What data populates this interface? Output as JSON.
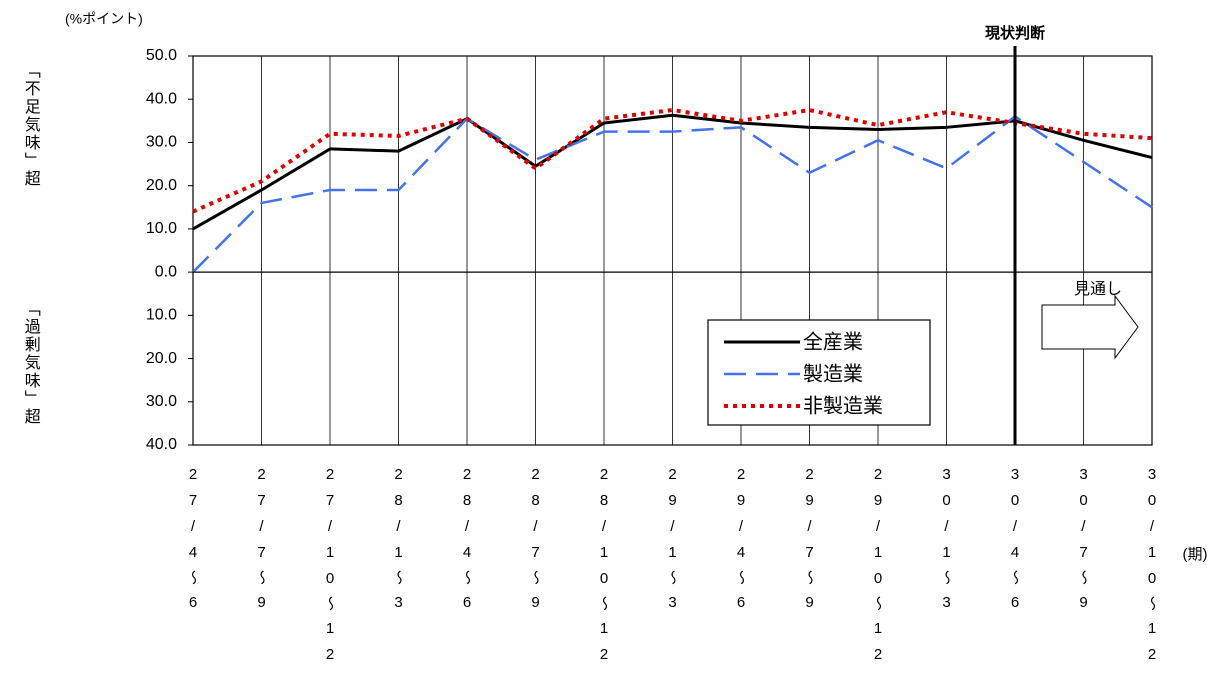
{
  "chart_data": {
    "type": "line",
    "unit_label": "(%ポイント)",
    "y_label_top": "「不足気味」超",
    "y_label_bottom": "「過剰気味」超",
    "x_label": "(期)",
    "annotations": [
      "現状判断",
      "見通し"
    ],
    "categories": [
      "27/4〜6",
      "27/7〜9",
      "27/10〜12",
      "28/1〜3",
      "28/4〜6",
      "28/7〜9",
      "28/10〜12",
      "29/1〜3",
      "29/4〜6",
      "29/7〜9",
      "29/10〜12",
      "30/1〜3",
      "30/4〜6",
      "30/7〜9",
      "30/10〜12"
    ],
    "series": [
      {
        "name": "全産業",
        "color": "#000000",
        "values": [
          10,
          19,
          28.5,
          28,
          35.5,
          24.5,
          34.5,
          36.3,
          34.5,
          33.5,
          33,
          33.5,
          35,
          30.5,
          26.5
        ]
      },
      {
        "name": "製造業",
        "color": "#4472e8",
        "values": [
          0,
          16,
          19,
          19,
          35.5,
          26,
          32.5,
          32.5,
          33.5,
          23,
          30.5,
          24,
          36,
          25.5,
          15
        ]
      },
      {
        "name": "非製造業",
        "color": "#e00000",
        "values": [
          14,
          21,
          32,
          31.5,
          35.5,
          24,
          35.5,
          37.5,
          35,
          37.5,
          34,
          37,
          34.5,
          32,
          31
        ]
      }
    ],
    "ylim": [
      -40,
      50
    ],
    "yticks": [
      {
        "value": 50,
        "label": "50.0"
      },
      {
        "value": 40,
        "label": "40.0"
      },
      {
        "value": 30,
        "label": "30.0"
      },
      {
        "value": 20,
        "label": "20.0"
      },
      {
        "value": 10,
        "label": "10.0"
      },
      {
        "value": 0,
        "label": "0.0"
      },
      {
        "value": -10,
        "label": "10.0"
      },
      {
        "value": -20,
        "label": "20.0"
      },
      {
        "value": -30,
        "label": "30.0"
      },
      {
        "value": -40,
        "label": "40.0"
      }
    ]
  }
}
